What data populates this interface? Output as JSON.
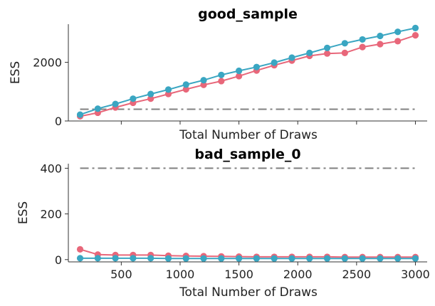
{
  "chart_data": [
    {
      "type": "line",
      "title": "good_sample",
      "xlabel": "Total Number of Draws",
      "ylabel": "ESS",
      "xlim": [
        50,
        3100
      ],
      "ylim": [
        0,
        3300
      ],
      "yticks": [
        0,
        2000
      ],
      "xticks": [
        500,
        1000,
        1500,
        2000,
        2500,
        3000
      ],
      "show_x_tick_labels": false,
      "grid": false,
      "x": [
        150,
        300,
        450,
        600,
        750,
        900,
        1050,
        1200,
        1350,
        1500,
        1650,
        1800,
        1950,
        2100,
        2250,
        2400,
        2550,
        2700,
        2850,
        3000
      ],
      "series": [
        {
          "color": "#e8677a",
          "values": [
            160,
            280,
            460,
            620,
            760,
            920,
            1080,
            1230,
            1360,
            1530,
            1720,
            1900,
            2060,
            2220,
            2300,
            2320,
            2520,
            2620,
            2720,
            2920
          ]
        },
        {
          "color": "#3aa6c2",
          "values": [
            215,
            420,
            580,
            760,
            920,
            1070,
            1240,
            1390,
            1570,
            1710,
            1840,
            1990,
            2160,
            2320,
            2490,
            2650,
            2780,
            2900,
            3040,
            3170
          ]
        }
      ],
      "reference_line": {
        "value": 400,
        "x_range": [
          150,
          3000
        ],
        "color": "#808080",
        "style": "dash-dot"
      }
    },
    {
      "type": "line",
      "title": "bad_sample_0",
      "xlabel": "Total Number of Draws",
      "ylabel": "ESS",
      "xlim": [
        50,
        3100
      ],
      "ylim": [
        -10,
        420
      ],
      "yticks": [
        0,
        200,
        400
      ],
      "xticks": [
        500,
        1000,
        1500,
        2000,
        2500,
        3000
      ],
      "show_x_tick_labels": true,
      "grid": false,
      "x": [
        150,
        300,
        450,
        600,
        750,
        900,
        1050,
        1200,
        1350,
        1500,
        1650,
        1800,
        1950,
        2100,
        2250,
        2400,
        2550,
        2700,
        2850,
        3000
      ],
      "series": [
        {
          "color": "#e8677a",
          "values": [
            45,
            22,
            20,
            20,
            20,
            17,
            16,
            15,
            14,
            13,
            12,
            12,
            12,
            12,
            12,
            11,
            11,
            11,
            11,
            11
          ]
        },
        {
          "color": "#3aa6c2",
          "values": [
            6,
            6,
            6,
            6,
            6,
            5,
            5,
            5,
            5,
            5,
            5,
            5,
            5,
            5,
            5,
            5,
            5,
            5,
            5,
            5
          ]
        }
      ],
      "reference_line": {
        "value": 400,
        "x_range": [
          150,
          3000
        ],
        "color": "#808080",
        "style": "dash-dot"
      }
    }
  ]
}
